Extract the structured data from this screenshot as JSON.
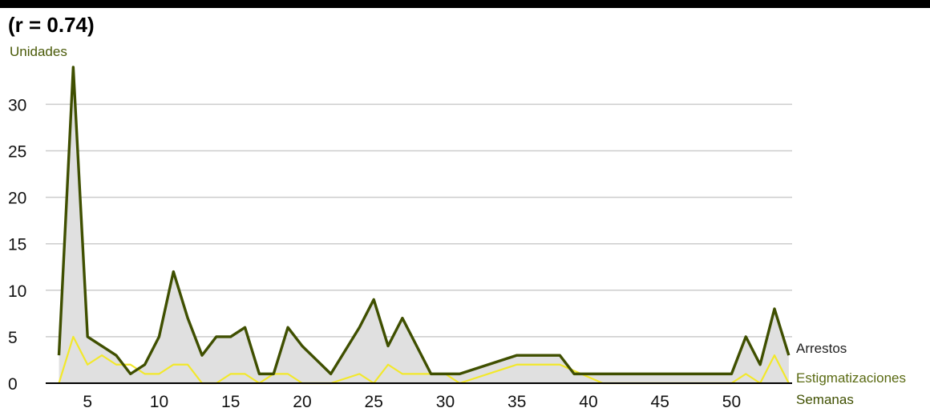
{
  "chart_data": {
    "type": "area",
    "title": "(r = 0.74)",
    "ylabel": "Unidades",
    "xlabel": "Semanas",
    "ylim": [
      0,
      34
    ],
    "xlim": [
      2.5,
      53.5
    ],
    "yticks": [
      0,
      5,
      10,
      15,
      20,
      25,
      30
    ],
    "xticks": [
      5,
      10,
      15,
      20,
      25,
      30,
      35,
      40,
      45,
      50
    ],
    "grid": true,
    "colors": {
      "arrestos": "#3f4f00",
      "estigmatizaciones": "#f2e82a",
      "fill": "#e0e0e0",
      "grid": "#cccccc",
      "label_estigmatizaciones": "#5a6a12"
    },
    "series": [
      {
        "name": "Arrestos",
        "points": [
          [
            3,
            3
          ],
          [
            4,
            34
          ],
          [
            5,
            5
          ],
          [
            6,
            4
          ],
          [
            7,
            3
          ],
          [
            8,
            1
          ],
          [
            9,
            2
          ],
          [
            10,
            5
          ],
          [
            11,
            12
          ],
          [
            12,
            7
          ],
          [
            13,
            3
          ],
          [
            14,
            5
          ],
          [
            15,
            5
          ],
          [
            16,
            6
          ],
          [
            17,
            1
          ],
          [
            18,
            1
          ],
          [
            19,
            6
          ],
          [
            20,
            4
          ],
          [
            21,
            2.5
          ],
          [
            22,
            1
          ],
          [
            24,
            6
          ],
          [
            25,
            9
          ],
          [
            26,
            4
          ],
          [
            27,
            7
          ],
          [
            29,
            1
          ],
          [
            31,
            1
          ],
          [
            35,
            3
          ],
          [
            38,
            3
          ],
          [
            39,
            1
          ],
          [
            50,
            1
          ],
          [
            51,
            5
          ],
          [
            52,
            2
          ],
          [
            53,
            8
          ],
          [
            54,
            3
          ]
        ]
      },
      {
        "name": "Estigmatizaciones",
        "points": [
          [
            3,
            0
          ],
          [
            4,
            5
          ],
          [
            5,
            2
          ],
          [
            6,
            3
          ],
          [
            7,
            2
          ],
          [
            8,
            2
          ],
          [
            9,
            1
          ],
          [
            10,
            1
          ],
          [
            11,
            2
          ],
          [
            12,
            2
          ],
          [
            13,
            0
          ],
          [
            14,
            0
          ],
          [
            15,
            1
          ],
          [
            16,
            1
          ],
          [
            17,
            0
          ],
          [
            18,
            1
          ],
          [
            19,
            1
          ],
          [
            20,
            0
          ],
          [
            22,
            0
          ],
          [
            24,
            1
          ],
          [
            25,
            0
          ],
          [
            26,
            2
          ],
          [
            27,
            1
          ],
          [
            29,
            1
          ],
          [
            30,
            1
          ],
          [
            31,
            0
          ],
          [
            35,
            2
          ],
          [
            38,
            2
          ],
          [
            41,
            0
          ],
          [
            50,
            0
          ],
          [
            51,
            1
          ],
          [
            52,
            0
          ],
          [
            53,
            3
          ],
          [
            54,
            0
          ]
        ]
      }
    ]
  }
}
